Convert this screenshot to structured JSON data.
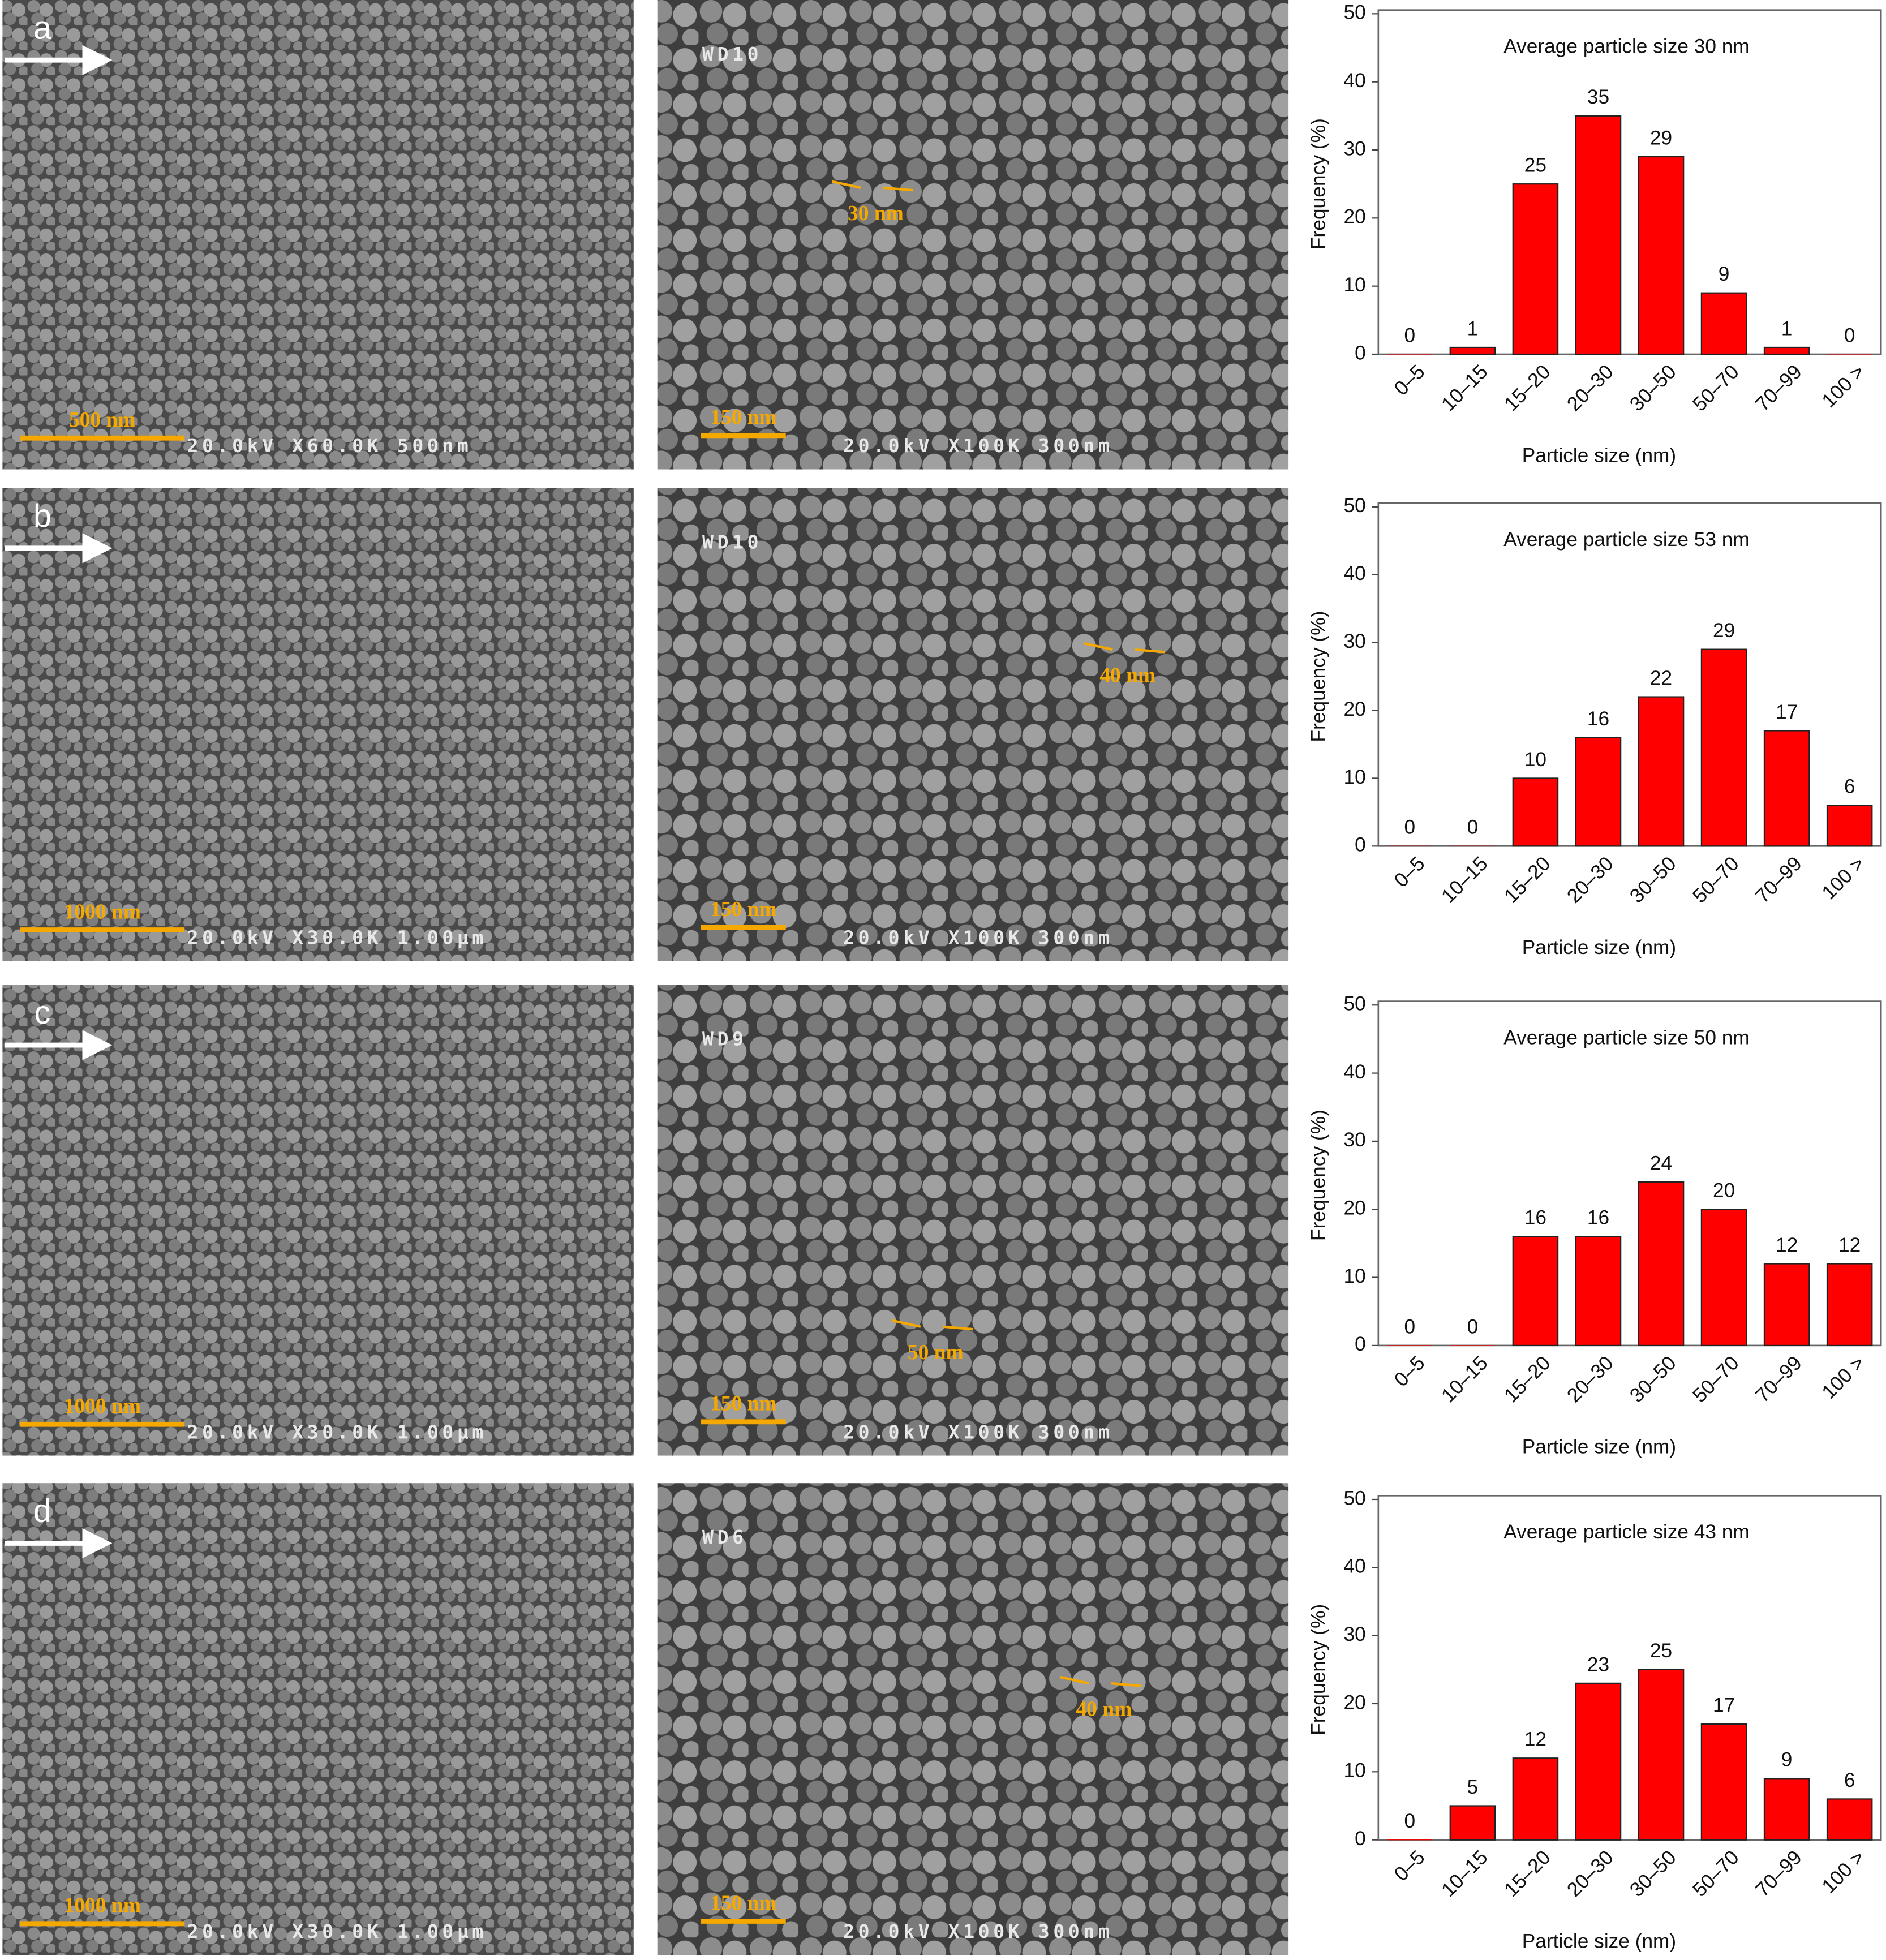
{
  "sem_panels": [
    {
      "label": "a",
      "left": {
        "scale_bar": "500 nm",
        "info": "20.0kV X60.0K 500nm"
      },
      "right": {
        "wd": "WD10",
        "feature_size": "30 nm",
        "scale_bar": "150 nm",
        "info": "20.0kV X100K 300nm"
      }
    },
    {
      "label": "b",
      "left": {
        "scale_bar": "1000 nm",
        "info": "20.0kV X30.0K 1.00µm"
      },
      "right": {
        "wd": "WD10",
        "feature_size": "40 nm",
        "scale_bar": "150 nm",
        "info": "20.0kV X100K 300nm"
      }
    },
    {
      "label": "c",
      "left": {
        "scale_bar": "1000 nm",
        "info": "20.0kV X30.0K 1.00µm"
      },
      "right": {
        "wd": "WD9",
        "feature_size": "50 nm",
        "scale_bar": "150 nm",
        "info": "20.0kV X100K 300nm"
      }
    },
    {
      "label": "d",
      "left": {
        "scale_bar": "1000 nm",
        "info": "20.0kV X30.0K 1.00µm"
      },
      "right": {
        "wd": "WD6",
        "feature_size": "40 nm",
        "scale_bar": "150 nm",
        "info": "20.0kV X100K 300nm"
      }
    }
  ],
  "chart_data": [
    {
      "type": "bar",
      "annotation": "Average particle size 30 nm",
      "x_label": "Particle size (nm)",
      "y_label": "Frequency (%)",
      "categories": [
        "0–5",
        "10–15",
        "15–20",
        "20–30",
        "30–50",
        "50–70",
        "70–99",
        "100 >"
      ],
      "values": [
        0,
        1,
        25,
        35,
        29,
        9,
        1,
        0
      ],
      "color": "#ff0000",
      "ylim": [
        0,
        50
      ],
      "yticks": [
        0,
        10,
        20,
        30,
        40,
        50
      ]
    },
    {
      "type": "bar",
      "annotation": "Average particle size 53 nm",
      "x_label": "Particle size (nm)",
      "y_label": "Frequency (%)",
      "categories": [
        "0–5",
        "10–15",
        "15–20",
        "20–30",
        "30–50",
        "50–70",
        "70–99",
        "100 >"
      ],
      "values": [
        0,
        0,
        10,
        16,
        22,
        29,
        17,
        6
      ],
      "color": "#ff0000",
      "ylim": [
        0,
        50
      ],
      "yticks": [
        0,
        10,
        20,
        30,
        40,
        50
      ]
    },
    {
      "type": "bar",
      "annotation": "Average particle size 50 nm",
      "x_label": "Particle size (nm)",
      "y_label": "Frequency (%)",
      "categories": [
        "0–5",
        "10–15",
        "15–20",
        "20–30",
        "30–50",
        "50–70",
        "70–99",
        "100 >"
      ],
      "values": [
        0,
        0,
        16,
        16,
        24,
        20,
        12,
        12
      ],
      "color": "#ff0000",
      "ylim": [
        0,
        50
      ],
      "yticks": [
        0,
        10,
        20,
        30,
        40,
        50
      ]
    },
    {
      "type": "bar",
      "annotation": "Average particle size 43 nm",
      "x_label": "Particle size (nm)",
      "y_label": "Frequency (%)",
      "categories": [
        "0–5",
        "10–15",
        "15–20",
        "20–30",
        "30–50",
        "50–70",
        "70–99",
        "100 >"
      ],
      "values": [
        0,
        5,
        12,
        23,
        25,
        17,
        9,
        6
      ],
      "color": "#ff0000",
      "ylim": [
        0,
        50
      ],
      "yticks": [
        0,
        10,
        20,
        30,
        40,
        50
      ]
    }
  ]
}
